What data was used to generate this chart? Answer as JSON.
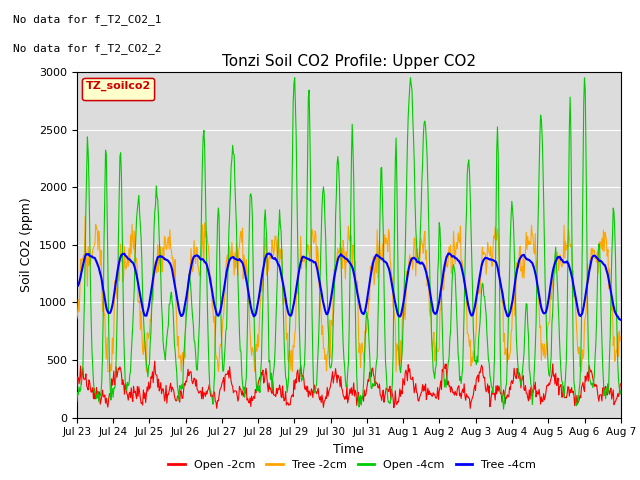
{
  "title": "Tonzi Soil CO2 Profile: Upper CO2",
  "xlabel": "Time",
  "ylabel": "Soil CO2 (ppm)",
  "ylim": [
    0,
    3000
  ],
  "yticks": [
    0,
    500,
    1000,
    1500,
    2000,
    2500,
    3000
  ],
  "legend_label": "TZ_soilco2",
  "legend_entries": [
    "Open -2cm",
    "Tree -2cm",
    "Open -4cm",
    "Tree -4cm"
  ],
  "line_colors": [
    "#ff0000",
    "#ffa500",
    "#00cc00",
    "#0000ff"
  ],
  "annotations": [
    "No data for f_T2_CO2_1",
    "No data for f_T2_CO2_2"
  ],
  "background_color": "#ffffff",
  "plot_bg_color": "#dcdcdc",
  "n_points": 720,
  "xtick_labels": [
    "Jul 23",
    "Jul 24",
    "Jul 25",
    "Jul 26",
    "Jul 27",
    "Jul 28",
    "Jul 29",
    "Jul 30",
    "Jul 31",
    "Aug 1",
    "Aug 2",
    "Aug 3",
    "Aug 4",
    "Aug 5",
    "Aug 6",
    "Aug 7"
  ]
}
